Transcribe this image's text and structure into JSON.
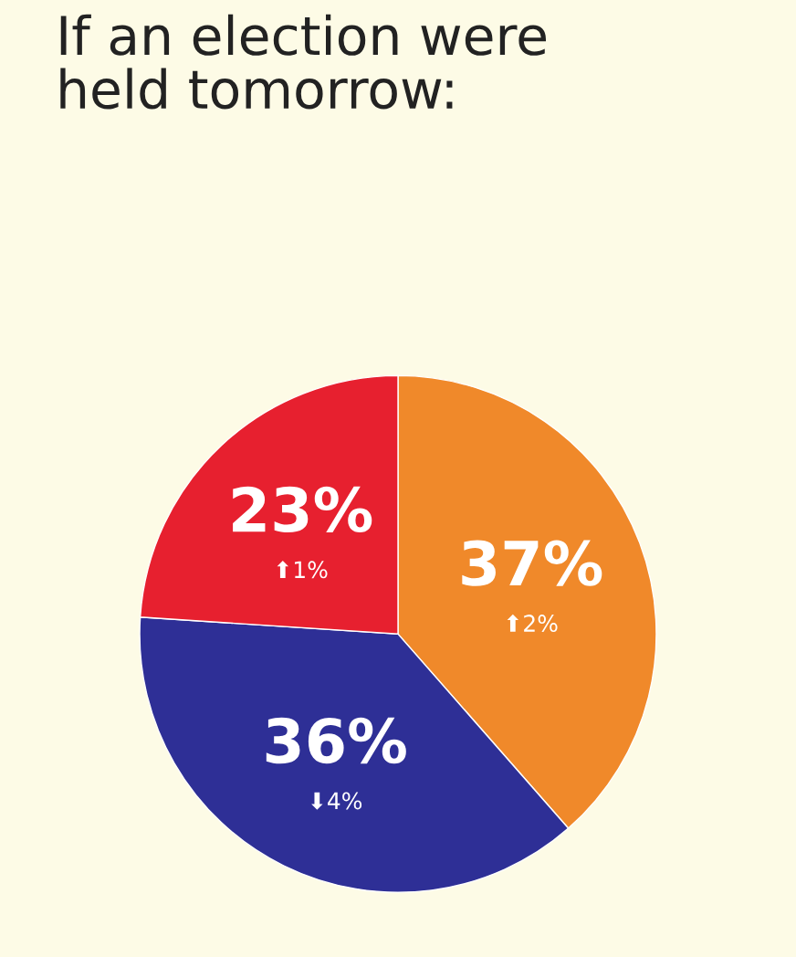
{
  "chart_data": {
    "type": "pie",
    "title": "If an election were\nheld tomorrow:",
    "categories": [
      null,
      null,
      null
    ],
    "values": [
      37,
      36,
      23
    ],
    "colors": [
      "#f0892a",
      "#2e2f96",
      "#e7202f"
    ],
    "value_labels": [
      "37%",
      "36%",
      "23%"
    ],
    "annotations": [
      "⬆2%",
      "⬇4%",
      "⬆1%"
    ]
  }
}
